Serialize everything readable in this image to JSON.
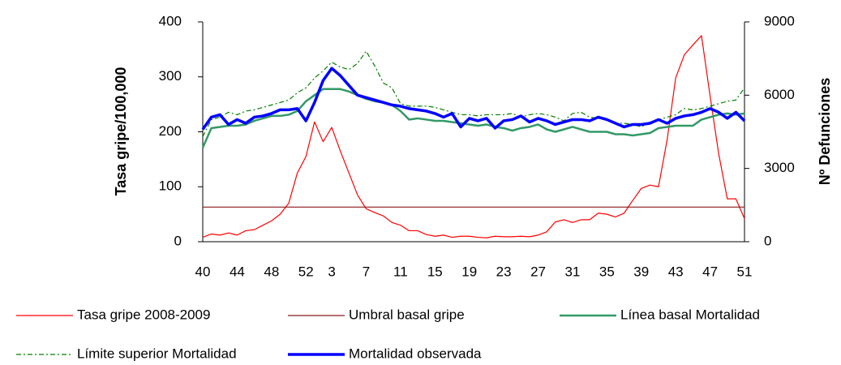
{
  "chart_data": {
    "type": "line",
    "y_label": "Tasa gripe/100,000",
    "y2_label": "Nº Defunciones",
    "categories": [
      "40",
      null,
      null,
      null,
      "44",
      null,
      null,
      null,
      "48",
      null,
      null,
      null,
      "52",
      null,
      null,
      "3",
      null,
      null,
      null,
      "7",
      null,
      null,
      null,
      "11",
      null,
      null,
      null,
      "15",
      null,
      null,
      null,
      "19",
      null,
      null,
      null,
      "23",
      null,
      null,
      null,
      "27",
      null,
      null,
      null,
      "31",
      null,
      null,
      null,
      "35",
      null,
      null,
      null,
      "39",
      null,
      null,
      null,
      "43",
      null,
      null,
      null,
      "47",
      null,
      null,
      null,
      "51"
    ],
    "ylim": [
      0,
      400
    ],
    "yticks": [
      0,
      100,
      200,
      300,
      400
    ],
    "y2lim": [
      0,
      9000
    ],
    "y2ticks": [
      0,
      3000,
      6000,
      9000
    ],
    "series": [
      {
        "name": "Tasa gripe 2008-2009",
        "color": "#ff0000",
        "line_width": 1.2,
        "dash": "solid",
        "values": [
          8,
          14,
          12,
          16,
          12,
          20,
          22,
          30,
          38,
          50,
          70,
          125,
          155,
          218,
          182,
          208,
          165,
          125,
          85,
          60,
          53,
          47,
          35,
          30,
          20,
          20,
          13,
          10,
          12,
          8,
          10,
          10,
          8,
          7,
          10,
          9,
          9,
          10,
          9,
          12,
          18,
          36,
          40,
          35,
          40,
          40,
          52,
          50,
          45,
          52,
          75,
          97,
          103,
          100,
          185,
          298,
          340,
          358,
          375,
          265,
          160,
          78,
          78,
          42
        ]
      },
      {
        "name": "Umbral basal gripe",
        "color": "#8b1a1a",
        "line_width": 1.2,
        "dash": "solid",
        "values": [
          63,
          63,
          63,
          63,
          63,
          63,
          63,
          63,
          63,
          63,
          63,
          63,
          63,
          63,
          63,
          63,
          63,
          63,
          63,
          63,
          63,
          63,
          63,
          63,
          63,
          63,
          63,
          63,
          63,
          63,
          63,
          63,
          63,
          63,
          63,
          63,
          63,
          63,
          63,
          63,
          63,
          63,
          63,
          63,
          63,
          63,
          63,
          63,
          63,
          63,
          63,
          63,
          63,
          63,
          63,
          63,
          63,
          63,
          63,
          63,
          63,
          63,
          63,
          63
        ]
      },
      {
        "name": "Línea basal Mortalidad",
        "color": "#339966",
        "line_width": 2.5,
        "dash": "solid",
        "axis": "y2",
        "values": [
          3850,
          4650,
          4700,
          4750,
          4750,
          4800,
          4950,
          5050,
          5150,
          5150,
          5200,
          5350,
          5750,
          6000,
          6250,
          6250,
          6250,
          6150,
          6000,
          5850,
          5750,
          5700,
          5600,
          5350,
          5000,
          5050,
          5000,
          4950,
          4950,
          4900,
          4850,
          4800,
          4750,
          4800,
          4700,
          4650,
          4550,
          4650,
          4700,
          4800,
          4600,
          4500,
          4600,
          4700,
          4600,
          4500,
          4500,
          4500,
          4400,
          4400,
          4350,
          4400,
          4450,
          4650,
          4700,
          4750,
          4750,
          4750,
          5000,
          5100,
          5200,
          5250,
          5200,
          5250
        ]
      },
      {
        "name": "Límite superior Mortalidad",
        "color": "#008000",
        "line_width": 1.2,
        "dash": "dash-dot",
        "axis": "y2",
        "values": [
          4300,
          5000,
          5100,
          5300,
          5200,
          5350,
          5400,
          5500,
          5600,
          5700,
          5800,
          6100,
          6300,
          6700,
          7000,
          7350,
          7150,
          7050,
          7300,
          7800,
          7200,
          6500,
          6300,
          5650,
          5550,
          5550,
          5550,
          5500,
          5400,
          5300,
          5200,
          5200,
          5150,
          5200,
          5200,
          5200,
          5250,
          5100,
          5200,
          5250,
          5200,
          5100,
          4950,
          5250,
          5300,
          5100,
          5050,
          5000,
          4850,
          4850,
          4800,
          4700,
          4900,
          5000,
          5100,
          5200,
          5450,
          5400,
          5450,
          5550,
          5650,
          5750,
          5800,
          6300
        ]
      },
      {
        "name": "Mortalidad observada",
        "color": "#0000ff",
        "line_width": 3.5,
        "dash": "solid",
        "axis": "y2",
        "values": [
          4600,
          5100,
          5200,
          4800,
          5000,
          4850,
          5100,
          5150,
          5250,
          5400,
          5400,
          5450,
          4950,
          5700,
          6600,
          7100,
          6800,
          6400,
          6000,
          5900,
          5800,
          5700,
          5600,
          5550,
          5450,
          5400,
          5350,
          5250,
          5100,
          5250,
          4700,
          5050,
          4950,
          5050,
          4650,
          4950,
          5000,
          5150,
          4900,
          5050,
          4950,
          4800,
          4900,
          5000,
          5000,
          4950,
          5100,
          5000,
          4850,
          4700,
          4800,
          4800,
          4850,
          5000,
          4850,
          5050,
          5150,
          5200,
          5300,
          5450,
          5300,
          5050,
          5300,
          4950
        ]
      }
    ]
  }
}
